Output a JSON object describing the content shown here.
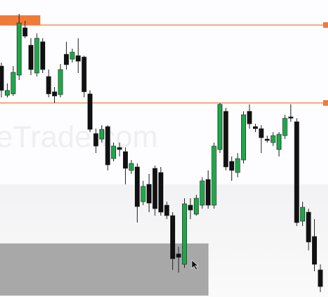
{
  "chart_data": {
    "type": "candlestick",
    "watermark": "eTrade.com",
    "categories": [
      null,
      null,
      null,
      null,
      null,
      null,
      null,
      null,
      null,
      null,
      null,
      null,
      null,
      null,
      null,
      null,
      null,
      null,
      null,
      null,
      null,
      null,
      null,
      null,
      null,
      null,
      null,
      null,
      null,
      null,
      null,
      null,
      null,
      null,
      null,
      null,
      null,
      null,
      null,
      null,
      null,
      null,
      null,
      null,
      null,
      null,
      null,
      null,
      null,
      null,
      null,
      null,
      null,
      null,
      null
    ],
    "open": [
      332,
      290,
      292,
      319,
      387,
      362,
      322,
      367,
      317,
      295,
      291,
      349,
      342,
      347,
      345,
      292,
      235,
      227,
      245,
      199,
      215,
      209,
      182,
      187,
      137,
      162,
      185,
      179,
      132,
      117,
      62,
      47,
      132,
      119,
      132,
      169,
      132,
      212,
      267,
      195,
      179,
      197,
      267,
      245,
      242,
      227,
      222,
      212,
      232,
      259,
      252,
      109,
      122,
      87,
      39
    ],
    "high": [
      337,
      307,
      332,
      407,
      397,
      372,
      379,
      372,
      327,
      302,
      335,
      367,
      357,
      372,
      347,
      297,
      242,
      247,
      247,
      222,
      222,
      215,
      197,
      192,
      167,
      177,
      189,
      187,
      137,
      122,
      72,
      142,
      142,
      147,
      172,
      182,
      222,
      279,
      272,
      202,
      207,
      267,
      277,
      249,
      247,
      232,
      237,
      237,
      262,
      277,
      257,
      137,
      127,
      112,
      47
    ],
    "low": [
      287,
      287,
      289,
      312,
      372,
      319,
      317,
      322,
      287,
      279,
      287,
      327,
      337,
      322,
      287,
      237,
      207,
      222,
      182,
      195,
      202,
      162,
      177,
      107,
      132,
      122,
      117,
      117,
      112,
      39,
      35,
      42,
      112,
      117,
      127,
      127,
      127,
      207,
      182,
      167,
      172,
      192,
      242,
      237,
      207,
      222,
      217,
      202,
      227,
      252,
      102,
      102,
      67,
      37,
      7
    ],
    "close": [
      297,
      297,
      323,
      394,
      375,
      327,
      372,
      327,
      292,
      289,
      327,
      334,
      352,
      339,
      295,
      241,
      217,
      241,
      190,
      217,
      212,
      185,
      192,
      130,
      159,
      135,
      127,
      122,
      117,
      55,
      57,
      134,
      125,
      142,
      167,
      132,
      217,
      277,
      187,
      182,
      199,
      262,
      249,
      242,
      229,
      225,
      232,
      234,
      257,
      257,
      107,
      129,
      79,
      47,
      15
    ],
    "up_color": "#1fa64a",
    "down_color": "#111111",
    "levels": [
      {
        "value": 391,
        "color": "#f07a3a"
      },
      {
        "value": 279,
        "color": "#f07a3a"
      }
    ],
    "zone": {
      "low": 2,
      "high": 77,
      "color": "#9a9a9a"
    },
    "ylim": [
      0,
      427
    ]
  }
}
